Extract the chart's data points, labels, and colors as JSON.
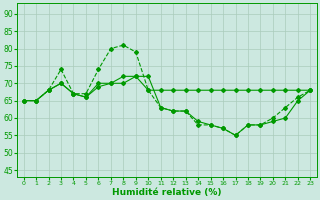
{
  "xlabel": "Humidité relative (%)",
  "xlim": [
    -0.5,
    23.5
  ],
  "ylim": [
    43,
    93
  ],
  "yticks": [
    45,
    50,
    55,
    60,
    65,
    70,
    75,
    80,
    85,
    90
  ],
  "xticks": [
    0,
    1,
    2,
    3,
    4,
    5,
    6,
    7,
    8,
    9,
    10,
    11,
    12,
    13,
    14,
    15,
    16,
    17,
    18,
    19,
    20,
    21,
    22,
    23
  ],
  "bg_color": "#cce8e0",
  "grid_color": "#aaccbb",
  "line_color": "#009900",
  "line1_dotted": [
    65,
    65,
    68,
    74,
    67,
    67,
    74,
    80,
    81,
    79,
    68,
    63,
    62,
    62,
    58,
    58,
    57,
    55,
    58,
    58,
    60,
    63,
    66,
    68
  ],
  "line2_flat": [
    65,
    65,
    68,
    70,
    67,
    66,
    69,
    70,
    70,
    72,
    68,
    68,
    68,
    68,
    68,
    68,
    68,
    68,
    68,
    68,
    68,
    68,
    68,
    68
  ],
  "line3_drop": [
    65,
    65,
    68,
    70,
    67,
    66,
    70,
    70,
    72,
    72,
    72,
    63,
    62,
    62,
    59,
    58,
    57,
    55,
    58,
    58,
    59,
    60,
    65,
    68
  ]
}
